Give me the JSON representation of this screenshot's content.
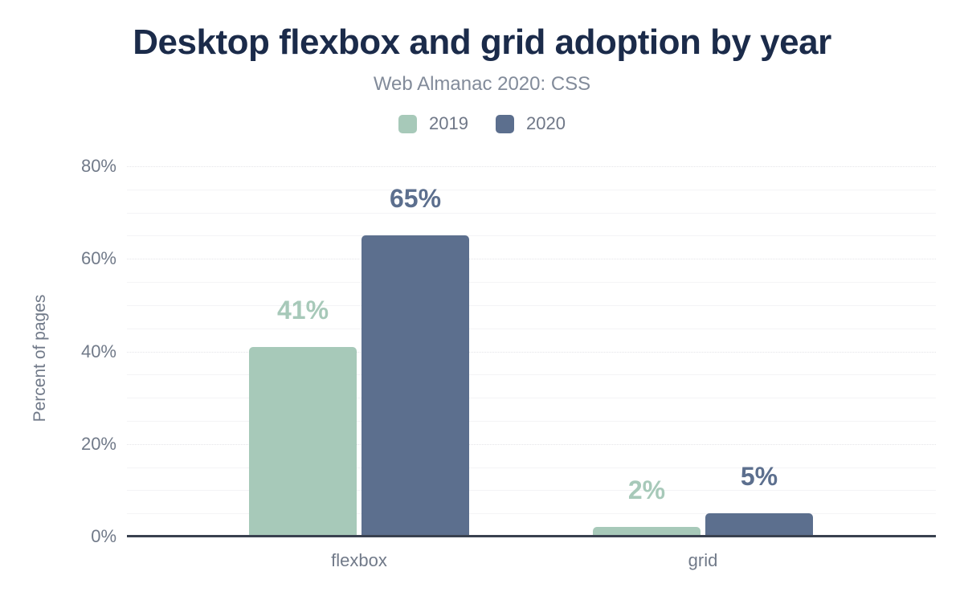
{
  "header": {
    "title": "Desktop flexbox and grid adoption by year",
    "subtitle": "Web Almanac 2020: CSS"
  },
  "chart_data": {
    "type": "bar",
    "title": "Desktop flexbox and grid adoption by year",
    "subtitle": "Web Almanac 2020: CSS",
    "categories": [
      "flexbox",
      "grid"
    ],
    "series": [
      {
        "name": "2019",
        "color": "#a7c9b9",
        "values": [
          41,
          2
        ],
        "labels": [
          "41%",
          "2%"
        ]
      },
      {
        "name": "2020",
        "color": "#5c6f8e",
        "values": [
          65,
          5
        ],
        "labels": [
          "65%",
          "5%"
        ]
      }
    ],
    "xlabel": "",
    "ylabel": "Percent of pages",
    "ylim": [
      0,
      80
    ],
    "yticks_major": [
      0,
      20,
      40,
      60,
      80
    ],
    "ytick_labels": [
      "0%",
      "20%",
      "40%",
      "60%",
      "80%"
    ],
    "ytick_minor_step": 5,
    "grid": "on",
    "legend_position": "top-center",
    "colors": {
      "background": "#ffffff",
      "title": "#1b2b4a",
      "subtitle_text": "#828b9a",
      "axis_text": "#717a89",
      "legend_text": "#6f7787",
      "axis_line": "#39414f",
      "gridline_major": "#e4e4e8",
      "gridline_minor": "#f4f4f6",
      "series_2019": "#a7c9b9",
      "series_2020": "#5c6f8e"
    }
  }
}
